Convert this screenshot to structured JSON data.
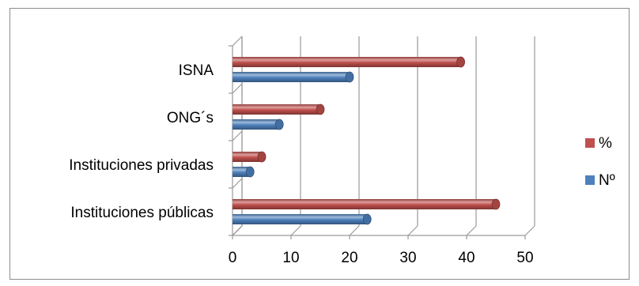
{
  "chart_data": {
    "type": "bar",
    "orientation": "horizontal",
    "style": "3d-cylinder",
    "categories": [
      "Instituciones públicas",
      "Instituciones privadas",
      "ONG´s",
      "ISNA"
    ],
    "series": [
      {
        "name": "Nº",
        "color": "#4F81BD",
        "values": [
          23,
          3,
          8,
          20
        ]
      },
      {
        "name": "%",
        "color": "#C0504D",
        "values": [
          45,
          5,
          15,
          39
        ]
      }
    ],
    "xlim": [
      0,
      50
    ],
    "xticks": [
      "0",
      "10",
      "20",
      "30",
      "40",
      "50"
    ],
    "grid": true,
    "legend": {
      "position": "right",
      "order": [
        "%",
        "Nº"
      ]
    },
    "title": "",
    "xlabel": "",
    "ylabel": ""
  }
}
